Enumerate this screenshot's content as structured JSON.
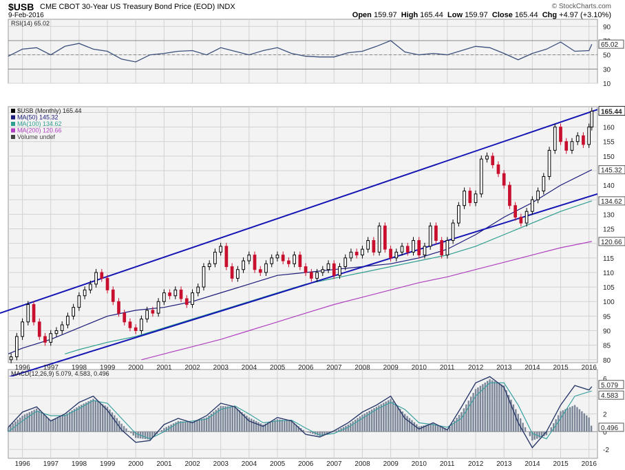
{
  "header": {
    "symbol": "$USB",
    "name": "CME CBOT 30-Year US Treasury Bond Price (EOD)",
    "exchange": "INDX",
    "date": "9-Feb-2016",
    "brand": "© StockCharts.com",
    "open_label": "Open",
    "open": "159.97",
    "high_label": "High",
    "high": "165.44",
    "low_label": "Low",
    "low": "159.97",
    "close_label": "Close",
    "close": "165.44",
    "chg_label": "Chg",
    "chg": "+4.97 (+3.10%)"
  },
  "colors": {
    "up": "#000000",
    "down": "#c8102e",
    "trendline": "#1515b4",
    "ma50": "#1a1a7a",
    "ma100": "#2e9e8e",
    "ma200": "#b040c0",
    "rsi": "#3a4f7a",
    "macd": "#2a3a6a",
    "signal": "#3aa0a0",
    "histogram": "#7a8598",
    "grid": "#d2d2d2",
    "panel_bg": "#f3f3f3"
  },
  "chart_data": [
    {
      "type": "line",
      "title": "RSI(14) 65.02",
      "indicator": "RSI(14)",
      "last_value": "65.02",
      "ylim": [
        10,
        100
      ],
      "y_ticks": [
        "90",
        "70",
        "50",
        "30",
        "10"
      ],
      "reference_lines": [
        70,
        50,
        30
      ],
      "x": [
        1995.5,
        1996,
        1996.5,
        1997,
        1997.5,
        1998,
        1998.5,
        1999,
        1999.5,
        2000,
        2000.5,
        2001,
        2001.5,
        2002,
        2002.5,
        2003,
        2003.5,
        2004,
        2004.5,
        2005,
        2005.5,
        2006,
        2006.5,
        2007,
        2007.5,
        2008,
        2008.5,
        2009,
        2009.5,
        2010,
        2010.5,
        2011,
        2011.5,
        2012,
        2012.5,
        2013,
        2013.5,
        2014,
        2014.5,
        2015,
        2015.5,
        2016,
        2016.1
      ],
      "values": [
        48,
        58,
        60,
        50,
        62,
        66,
        58,
        55,
        44,
        40,
        50,
        52,
        55,
        56,
        50,
        60,
        55,
        50,
        56,
        60,
        52,
        48,
        47,
        47,
        53,
        55,
        62,
        70,
        54,
        50,
        52,
        50,
        56,
        62,
        60,
        52,
        43,
        52,
        58,
        68,
        55,
        56,
        65
      ]
    },
    {
      "type": "candlestick",
      "title": "$USB (Monthly) 165.44",
      "frequency": "Monthly",
      "ylim": [
        79,
        167
      ],
      "y_ticks": [
        "165",
        "160",
        "155",
        "150",
        "145",
        "140",
        "135",
        "130",
        "125",
        "120",
        "115",
        "110",
        "105",
        "100",
        "95",
        "90",
        "85",
        "80"
      ],
      "x_ticks": [
        "1996",
        "1997",
        "1998",
        "1999",
        "2000",
        "2001",
        "2002",
        "2003",
        "2004",
        "2005",
        "2006",
        "2007",
        "2008",
        "2009",
        "2010",
        "2011",
        "2012",
        "2013",
        "2014",
        "2015",
        "2016"
      ],
      "last_price_label": "165.44",
      "price_points": {
        "x": [
          1995.6,
          1995.8,
          1996.0,
          1996.2,
          1996.4,
          1996.6,
          1996.8,
          1997.0,
          1997.2,
          1997.4,
          1997.6,
          1997.8,
          1998.0,
          1998.2,
          1998.4,
          1998.6,
          1998.8,
          1999.0,
          1999.2,
          1999.4,
          1999.6,
          1999.8,
          2000.0,
          2000.2,
          2000.4,
          2000.6,
          2000.8,
          2001.0,
          2001.2,
          2001.4,
          2001.6,
          2001.8,
          2002.0,
          2002.2,
          2002.4,
          2002.6,
          2002.8,
          2003.0,
          2003.2,
          2003.4,
          2003.6,
          2003.8,
          2004.0,
          2004.2,
          2004.4,
          2004.6,
          2004.8,
          2005.0,
          2005.2,
          2005.4,
          2005.6,
          2005.8,
          2006.0,
          2006.2,
          2006.4,
          2006.6,
          2006.8,
          2007.0,
          2007.2,
          2007.4,
          2007.6,
          2007.8,
          2008.0,
          2008.2,
          2008.4,
          2008.6,
          2008.8,
          2009.0,
          2009.2,
          2009.4,
          2009.6,
          2009.8,
          2010.0,
          2010.2,
          2010.4,
          2010.6,
          2010.8,
          2011.0,
          2011.2,
          2011.4,
          2011.6,
          2011.8,
          2012.0,
          2012.2,
          2012.4,
          2012.6,
          2012.8,
          2013.0,
          2013.2,
          2013.4,
          2013.6,
          2013.8,
          2014.0,
          2014.2,
          2014.4,
          2014.6,
          2014.8,
          2015.0,
          2015.2,
          2015.4,
          2015.6,
          2015.8,
          2016.0,
          2016.1
        ],
        "close": [
          81,
          88,
          93,
          99,
          93,
          88,
          86,
          89,
          90,
          92,
          95,
          98,
          102,
          104,
          106,
          110,
          108,
          104,
          100,
          96,
          93,
          91,
          90,
          94,
          97,
          96,
          100,
          103,
          102,
          104,
          101,
          99,
          103,
          105,
          112,
          113,
          117,
          119,
          112,
          108,
          111,
          114,
          116,
          111,
          110,
          113,
          115,
          116,
          114,
          113,
          116,
          112,
          110,
          108,
          110,
          111,
          113,
          109,
          112,
          115,
          117,
          116,
          118,
          121,
          117,
          126,
          118,
          115,
          117,
          119,
          117,
          121,
          116,
          119,
          126,
          121,
          116,
          121,
          127,
          133,
          138,
          134,
          137,
          149,
          150,
          147,
          144,
          140,
          133,
          129,
          127,
          131,
          135,
          138,
          143,
          152,
          160,
          155,
          152,
          155,
          157,
          154,
          160,
          165.44
        ]
      },
      "series": [
        {
          "name": "MA(50)",
          "last": "145.32",
          "x": [
            1995.5,
            1996,
            1997,
            1998,
            1999,
            2000,
            2001,
            2002,
            2003,
            2004,
            2005,
            2006,
            2007,
            2008,
            2009,
            2010,
            2011,
            2012,
            2013,
            2014,
            2015,
            2016.1
          ],
          "values": [
            82,
            84,
            87,
            91,
            95,
            97,
            98,
            100,
            103,
            106,
            109,
            110,
            111,
            112,
            113,
            115,
            118,
            123,
            129,
            134,
            140,
            145.32
          ]
        },
        {
          "name": "MA(100)",
          "last": "134.62",
          "x": [
            1997.5,
            1998,
            1999,
            2000,
            2001,
            2002,
            2003,
            2004,
            2005,
            2006,
            2007,
            2008,
            2009,
            2010,
            2011,
            2012,
            2013,
            2014,
            2015,
            2016.1
          ],
          "values": [
            82,
            83.5,
            86,
            88,
            91,
            94,
            97,
            100,
            103,
            106,
            108,
            110,
            112,
            114,
            116,
            119,
            123,
            127,
            131,
            134.62
          ]
        },
        {
          "name": "MA(200)",
          "last": "120.66",
          "x": [
            2000.2,
            2001,
            2002,
            2003,
            2004,
            2005,
            2006,
            2007,
            2008,
            2009,
            2010,
            2011,
            2012,
            2013,
            2014,
            2015,
            2016.1
          ],
          "values": [
            80,
            82,
            84.5,
            87,
            90,
            93,
            96,
            99,
            101.5,
            104,
            106.5,
            108.5,
            111,
            113.5,
            116,
            118.5,
            120.66
          ]
        }
      ],
      "legend": [
        "$USB (Monthly) 165.44",
        "MA(50) 145.32",
        "MA(100) 134.62",
        "MA(200) 120.66",
        "Volume undef"
      ],
      "trend_channel": {
        "upper": {
          "x": [
            1995.5,
            2016.3
          ],
          "values": [
            97,
            166
          ]
        },
        "lower": {
          "x": [
            1995.5,
            2016.3
          ],
          "values": [
            74,
            137
          ]
        }
      }
    },
    {
      "type": "line",
      "title": "MACD(12,26,9) 5.079, 4.583, 0.496",
      "indicator": "MACD(12,26,9)",
      "values_label": [
        "5.079",
        "4.583",
        "0.496"
      ],
      "ylim": [
        -3,
        7
      ],
      "y_ticks": [
        "6",
        "4",
        "2",
        "0",
        "-2"
      ],
      "x_ticks": [
        "1996",
        "1997",
        "1998",
        "1999",
        "2000",
        "2001",
        "2002",
        "2003",
        "2004",
        "2005",
        "2006",
        "2007",
        "2008",
        "2009",
        "2010",
        "2011",
        "2012",
        "2013",
        "2014",
        "2015",
        "2016"
      ],
      "series": [
        {
          "name": "MACD",
          "x": [
            1995.5,
            1996,
            1996.5,
            1997,
            1997.5,
            1998,
            1998.5,
            1999,
            1999.5,
            2000,
            2000.5,
            2001,
            2001.5,
            2002,
            2002.5,
            2003,
            2003.5,
            2004,
            2004.5,
            2005,
            2005.5,
            2006,
            2006.5,
            2007,
            2007.5,
            2008,
            2008.5,
            2009,
            2009.5,
            2010,
            2010.5,
            2011,
            2011.5,
            2012,
            2012.5,
            2013,
            2013.5,
            2014,
            2014.5,
            2015,
            2015.5,
            2016,
            2016.1
          ],
          "values": [
            0.5,
            2.2,
            2.8,
            1.2,
            2.0,
            3.3,
            4.0,
            2.4,
            0.2,
            -1.2,
            -1.0,
            0.8,
            1.5,
            1.0,
            1.8,
            3.2,
            2.8,
            1.2,
            0.6,
            1.6,
            1.2,
            -0.3,
            -0.6,
            0.1,
            1.0,
            2.2,
            3.0,
            4.0,
            1.5,
            0.3,
            1.0,
            0.2,
            2.8,
            5.5,
            6.2,
            5.0,
            1.0,
            -1.8,
            0.0,
            3.0,
            5.2,
            4.7,
            5.079
          ]
        },
        {
          "name": "Signal",
          "x": [
            1995.5,
            1996,
            1996.5,
            1997,
            1997.5,
            1998,
            1998.5,
            1999,
            1999.5,
            2000,
            2000.5,
            2001,
            2001.5,
            2002,
            2002.5,
            2003,
            2003.5,
            2004,
            2004.5,
            2005,
            2005.5,
            2006,
            2006.5,
            2007,
            2007.5,
            2008,
            2008.5,
            2009,
            2009.5,
            2010,
            2010.5,
            2011,
            2011.5,
            2012,
            2012.5,
            2013,
            2013.5,
            2014,
            2014.5,
            2015,
            2015.5,
            2016,
            2016.1
          ],
          "values": [
            0.0,
            1.2,
            2.3,
            1.8,
            1.8,
            2.6,
            3.5,
            3.2,
            1.5,
            -0.2,
            -0.8,
            0.0,
            1.0,
            1.2,
            1.4,
            2.5,
            2.9,
            2.0,
            1.0,
            1.2,
            1.3,
            0.4,
            -0.4,
            -0.2,
            0.5,
            1.5,
            2.5,
            3.3,
            2.5,
            1.0,
            0.8,
            0.5,
            1.5,
            4.0,
            5.5,
            5.5,
            3.0,
            -0.2,
            -0.8,
            1.5,
            4.0,
            4.5,
            4.583
          ]
        },
        {
          "name": "Histogram",
          "x": [
            1995.5,
            1996,
            1996.5,
            1997,
            1997.5,
            1998,
            1998.5,
            1999,
            1999.5,
            2000,
            2000.5,
            2001,
            2001.5,
            2002,
            2002.5,
            2003,
            2003.5,
            2004,
            2004.5,
            2005,
            2005.5,
            2006,
            2006.5,
            2007,
            2007.5,
            2008,
            2008.5,
            2009,
            2009.5,
            2010,
            2010.5,
            2011,
            2011.5,
            2012,
            2012.5,
            2013,
            2013.5,
            2014,
            2014.5,
            2015,
            2015.5,
            2016,
            2016.1
          ],
          "values": [
            0.5,
            1.8,
            2.6,
            1.3,
            1.9,
            2.9,
            3.7,
            2.8,
            0.9,
            -0.7,
            -0.9,
            0.4,
            1.2,
            1.1,
            1.6,
            2.9,
            2.8,
            1.6,
            0.8,
            1.4,
            1.2,
            0.0,
            -0.5,
            0.0,
            0.8,
            1.9,
            2.8,
            3.7,
            2.0,
            0.6,
            0.9,
            0.3,
            2.2,
            4.8,
            5.9,
            5.2,
            2.0,
            -1.0,
            -0.4,
            2.3,
            3.0,
            1.6,
            0.496
          ]
        }
      ]
    }
  ]
}
